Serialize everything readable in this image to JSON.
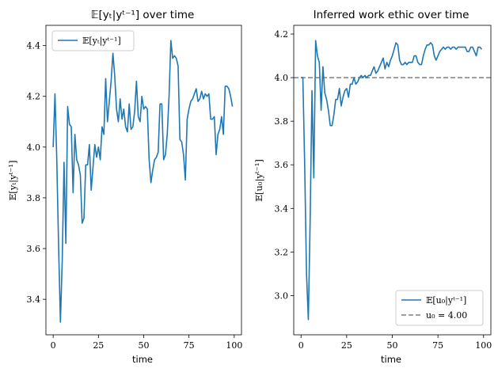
{
  "figure": {
    "colors": {
      "series": "#1f77b4",
      "reference": "#7f7f7f",
      "axes": "#000000"
    }
  },
  "chart_data": [
    {
      "type": "line",
      "title": "𝔼[yₜ|yᵗ⁻¹] over time",
      "xlabel": "time",
      "ylabel": "𝔼[yₜ|yᵗ⁻¹]",
      "xlim": [
        -4,
        104
      ],
      "ylim": [
        3.26,
        4.48
      ],
      "xticks": [
        0,
        25,
        50,
        75,
        100
      ],
      "yticks": [
        3.4,
        3.6,
        3.8,
        4.0,
        4.2,
        4.4
      ],
      "ytick_labels": [
        "3.4",
        "3.6",
        "3.8",
        "4.0",
        "4.2",
        "4.4"
      ],
      "legend": {
        "placement": "upper left",
        "entries": [
          {
            "label": "𝔼[yₜ|yᵗ⁻¹]",
            "style": "solid"
          }
        ]
      },
      "series": [
        {
          "name": "𝔼[yₜ|yᵗ⁻¹]",
          "color": "#1f77b4",
          "x": [
            0,
            1,
            2,
            3,
            4,
            5,
            6,
            7,
            8,
            9,
            10,
            11,
            12,
            13,
            14,
            15,
            16,
            17,
            18,
            19,
            20,
            21,
            22,
            23,
            24,
            25,
            26,
            27,
            28,
            29,
            30,
            31,
            32,
            33,
            34,
            35,
            36,
            37,
            38,
            39,
            40,
            41,
            42,
            43,
            44,
            45,
            46,
            47,
            48,
            49,
            50,
            51,
            52,
            53,
            54,
            55,
            56,
            57,
            58,
            59,
            60,
            61,
            62,
            63,
            64,
            65,
            66,
            67,
            68,
            69,
            70,
            71,
            72,
            73,
            74,
            75,
            76,
            77,
            78,
            79,
            80,
            81,
            82,
            83,
            84,
            85,
            86,
            87,
            88,
            89,
            90,
            91,
            92,
            93,
            94,
            95,
            96,
            97,
            98,
            99
          ],
          "y": [
            4.0,
            4.21,
            3.95,
            3.61,
            3.31,
            3.55,
            3.94,
            3.62,
            4.16,
            4.09,
            4.08,
            3.82,
            4.05,
            3.95,
            3.93,
            3.89,
            3.7,
            3.72,
            3.93,
            3.93,
            4.01,
            3.83,
            3.92,
            4.01,
            3.96,
            4.0,
            3.95,
            4.08,
            4.05,
            4.27,
            4.1,
            4.18,
            4.26,
            4.37,
            4.28,
            4.15,
            4.1,
            4.19,
            4.11,
            4.15,
            4.08,
            4.06,
            4.17,
            4.07,
            4.08,
            4.14,
            4.26,
            4.12,
            4.1,
            4.2,
            4.15,
            4.16,
            4.15,
            3.95,
            3.86,
            3.91,
            3.95,
            3.96,
            3.98,
            4.17,
            4.17,
            3.95,
            3.97,
            4.05,
            4.2,
            4.42,
            4.35,
            4.36,
            4.35,
            4.32,
            4.03,
            4.02,
            3.97,
            3.87,
            4.11,
            4.15,
            4.18,
            4.19,
            4.21,
            4.23,
            4.18,
            4.19,
            4.22,
            4.19,
            4.21,
            4.2,
            4.21,
            4.11,
            4.11,
            4.12,
            3.97,
            4.05,
            4.07,
            4.12,
            4.05,
            4.24,
            4.24,
            4.23,
            4.2,
            4.16
          ]
        }
      ]
    },
    {
      "type": "line",
      "title": "Inferred work ethic over time",
      "xlabel": "time",
      "ylabel": "𝔼[u₀|yᵗ⁻¹]",
      "xlim": [
        -4,
        104
      ],
      "ylim": [
        2.82,
        4.24
      ],
      "xticks": [
        0,
        25,
        50,
        75,
        100
      ],
      "yticks": [
        3.0,
        3.2,
        3.4,
        3.6,
        3.8,
        4.0,
        4.2
      ],
      "ytick_labels": [
        "3.0",
        "3.2",
        "3.4",
        "3.6",
        "3.8",
        "4.0",
        "4.2"
      ],
      "legend": {
        "placement": "lower right",
        "entries": [
          {
            "label": "𝔼[u₀|yᵗ⁻¹]",
            "style": "solid"
          },
          {
            "label": "u₀ = 4.00",
            "style": "dashed"
          }
        ]
      },
      "reference_line": {
        "y": 4.0,
        "style": "dashed",
        "label": "u₀ = 4.00"
      },
      "series": [
        {
          "name": "𝔼[u₀|yᵗ⁻¹]",
          "color": "#1f77b4",
          "x": [
            0,
            1,
            2,
            3,
            4,
            5,
            6,
            7,
            8,
            9,
            10,
            11,
            12,
            13,
            14,
            15,
            16,
            17,
            18,
            19,
            20,
            21,
            22,
            23,
            24,
            25,
            26,
            27,
            28,
            29,
            30,
            31,
            32,
            33,
            34,
            35,
            36,
            37,
            38,
            39,
            40,
            41,
            42,
            43,
            44,
            45,
            46,
            47,
            48,
            49,
            50,
            51,
            52,
            53,
            54,
            55,
            56,
            57,
            58,
            59,
            60,
            61,
            62,
            63,
            64,
            65,
            66,
            67,
            68,
            69,
            70,
            71,
            72,
            73,
            74,
            75,
            76,
            77,
            78,
            79,
            80,
            81,
            82,
            83,
            84,
            85,
            86,
            87,
            88,
            89,
            90,
            91,
            92,
            93,
            94,
            95,
            96,
            97,
            98,
            99
          ],
          "y": [
            4.0,
            4.0,
            3.6,
            3.1,
            2.89,
            3.35,
            3.94,
            3.54,
            4.17,
            4.1,
            4.07,
            3.85,
            4.05,
            3.93,
            3.9,
            3.85,
            3.78,
            3.78,
            3.83,
            3.9,
            3.9,
            3.95,
            3.87,
            3.91,
            3.94,
            3.95,
            3.91,
            3.97,
            3.97,
            4.0,
            3.97,
            3.98,
            4.0,
            4.01,
            4.0,
            4.01,
            4.0,
            4.01,
            4.01,
            4.03,
            4.05,
            4.02,
            4.03,
            4.05,
            4.07,
            4.09,
            4.04,
            4.07,
            4.05,
            4.08,
            4.1,
            4.13,
            4.16,
            4.15,
            4.08,
            4.06,
            4.06,
            4.07,
            4.06,
            4.07,
            4.07,
            4.07,
            4.1,
            4.1,
            4.07,
            4.06,
            4.06,
            4.1,
            4.13,
            4.15,
            4.15,
            4.16,
            4.15,
            4.1,
            4.08,
            4.1,
            4.12,
            4.13,
            4.14,
            4.13,
            4.14,
            4.14,
            4.13,
            4.14,
            4.14,
            4.13,
            4.14,
            4.14,
            4.14,
            4.14,
            4.14,
            4.12,
            4.12,
            4.14,
            4.14,
            4.12,
            4.1,
            4.14,
            4.14,
            4.13
          ]
        }
      ]
    }
  ]
}
